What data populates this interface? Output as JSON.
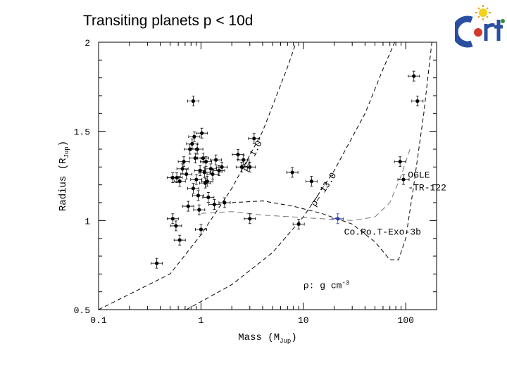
{
  "slide": {
    "title": "Transiting planets p < 10d",
    "logo_text": "CoRoT"
  },
  "chart_data": {
    "type": "scatter",
    "title": "",
    "xlabel": "Mass (M",
    "xlabel_sub": "Jup",
    "xlabel_close": ")",
    "ylabel": "Radius (R",
    "ylabel_sub": "Jup",
    "ylabel_close": ")",
    "x_scale": "log",
    "xlim": [
      0.1,
      200
    ],
    "ylim": [
      0.5,
      2.0
    ],
    "x_ticks": [
      {
        "value": 0.1,
        "label": "0.1"
      },
      {
        "value": 1,
        "label": "1"
      },
      {
        "value": 10,
        "label": "10"
      },
      {
        "value": 100,
        "label": "100"
      }
    ],
    "y_ticks": [
      {
        "value": 0.5,
        "label": "0.5"
      },
      {
        "value": 1.0,
        "label": "1"
      },
      {
        "value": 1.5,
        "label": "1.5"
      },
      {
        "value": 2.0,
        "label": "2"
      }
    ],
    "grid": false,
    "series": [
      {
        "points": [
          {
            "x": 0.37,
            "y": 0.76
          },
          {
            "x": 0.53,
            "y": 1.01
          },
          {
            "x": 0.57,
            "y": 0.97
          },
          {
            "x": 0.62,
            "y": 0.89
          },
          {
            "x": 0.53,
            "y": 1.24
          },
          {
            "x": 0.58,
            "y": 1.24
          },
          {
            "x": 0.62,
            "y": 1.22
          },
          {
            "x": 0.66,
            "y": 1.29
          },
          {
            "x": 0.68,
            "y": 1.33
          },
          {
            "x": 0.72,
            "y": 1.26
          },
          {
            "x": 0.75,
            "y": 1.08
          },
          {
            "x": 0.78,
            "y": 1.4
          },
          {
            "x": 0.82,
            "y": 1.43
          },
          {
            "x": 0.84,
            "y": 1.67
          },
          {
            "x": 0.84,
            "y": 1.18
          },
          {
            "x": 0.86,
            "y": 1.47
          },
          {
            "x": 0.88,
            "y": 1.35
          },
          {
            "x": 0.9,
            "y": 1.23
          },
          {
            "x": 0.92,
            "y": 1.4
          },
          {
            "x": 0.94,
            "y": 1.14
          },
          {
            "x": 0.96,
            "y": 1.06
          },
          {
            "x": 0.98,
            "y": 1.28
          },
          {
            "x": 1.0,
            "y": 0.95
          },
          {
            "x": 1.02,
            "y": 1.49
          },
          {
            "x": 1.05,
            "y": 1.35
          },
          {
            "x": 1.08,
            "y": 1.27
          },
          {
            "x": 1.1,
            "y": 1.21
          },
          {
            "x": 1.12,
            "y": 1.33
          },
          {
            "x": 1.15,
            "y": 1.22
          },
          {
            "x": 1.18,
            "y": 1.13
          },
          {
            "x": 1.25,
            "y": 1.29
          },
          {
            "x": 1.3,
            "y": 1.26
          },
          {
            "x": 1.35,
            "y": 1.09
          },
          {
            "x": 1.4,
            "y": 1.34
          },
          {
            "x": 1.5,
            "y": 1.28
          },
          {
            "x": 1.6,
            "y": 1.3
          },
          {
            "x": 1.7,
            "y": 1.1
          },
          {
            "x": 2.3,
            "y": 1.37
          },
          {
            "x": 2.5,
            "y": 1.3
          },
          {
            "x": 2.6,
            "y": 1.34
          },
          {
            "x": 3.0,
            "y": 1.01
          },
          {
            "x": 3.0,
            "y": 1.3
          },
          {
            "x": 3.3,
            "y": 1.46
          },
          {
            "x": 7.8,
            "y": 1.27
          },
          {
            "x": 9.0,
            "y": 0.98
          },
          {
            "x": 12.0,
            "y": 1.22
          },
          {
            "x": 88.0,
            "y": 1.33
          },
          {
            "x": 95.0,
            "y": 1.23
          },
          {
            "x": 120.0,
            "y": 1.81
          },
          {
            "x": 130.0,
            "y": 1.67
          }
        ],
        "color": "#000000"
      },
      {
        "points": [
          {
            "x": 21.7,
            "y": 1.01
          }
        ],
        "color": "#2a3aa8"
      }
    ],
    "curves": [
      {
        "label": "ρ= 1.0",
        "points": [
          [
            0.1,
            0.5
          ],
          [
            0.5,
            0.7
          ],
          [
            1.0,
            0.92
          ],
          [
            2.0,
            1.18
          ],
          [
            4.0,
            1.5
          ],
          [
            7.0,
            1.86
          ],
          [
            8.5,
            2.0
          ]
        ]
      },
      {
        "label": "ρ= 13.0",
        "points": [
          [
            0.72,
            0.5
          ],
          [
            2.0,
            0.64
          ],
          [
            5.0,
            0.82
          ],
          [
            10.0,
            1.02
          ],
          [
            20.0,
            1.28
          ],
          [
            40.0,
            1.6
          ],
          [
            60.0,
            1.85
          ],
          [
            78.0,
            2.0
          ]
        ]
      },
      {
        "points": [
          [
            2.0,
            1.1
          ],
          [
            4.0,
            1.11
          ],
          [
            8.0,
            1.08
          ],
          [
            15.0,
            1.04
          ],
          [
            30.0,
            0.98
          ],
          [
            50.0,
            0.88
          ],
          [
            70.0,
            0.78
          ],
          [
            85.0,
            0.78
          ],
          [
            100.0,
            0.9
          ],
          [
            120.0,
            1.2
          ],
          [
            150.0,
            1.6
          ],
          [
            180.0,
            2.0
          ]
        ]
      },
      {
        "points": [
          [
            1.0,
            1.04
          ],
          [
            2.0,
            1.05
          ],
          [
            4.0,
            1.03
          ],
          [
            8.0,
            1.02
          ],
          [
            15.0,
            1.01
          ],
          [
            30.0,
            1.0
          ],
          [
            50.0,
            1.02
          ],
          [
            70.0,
            1.1
          ],
          [
            90.0,
            1.25
          ],
          [
            110.0,
            1.4
          ]
        ]
      }
    ],
    "annotations": [
      {
        "text": "OGLE",
        "x": 105,
        "y": 1.24
      },
      {
        "text": "-TR-122",
        "x": 105,
        "y": 1.17
      },
      {
        "text": "Co.Ro.T-Exo-3b",
        "x": 25,
        "y": 0.92
      },
      {
        "text": "ρ: g cm",
        "superscript": "-3",
        "x": 10,
        "y": 0.62
      }
    ]
  }
}
